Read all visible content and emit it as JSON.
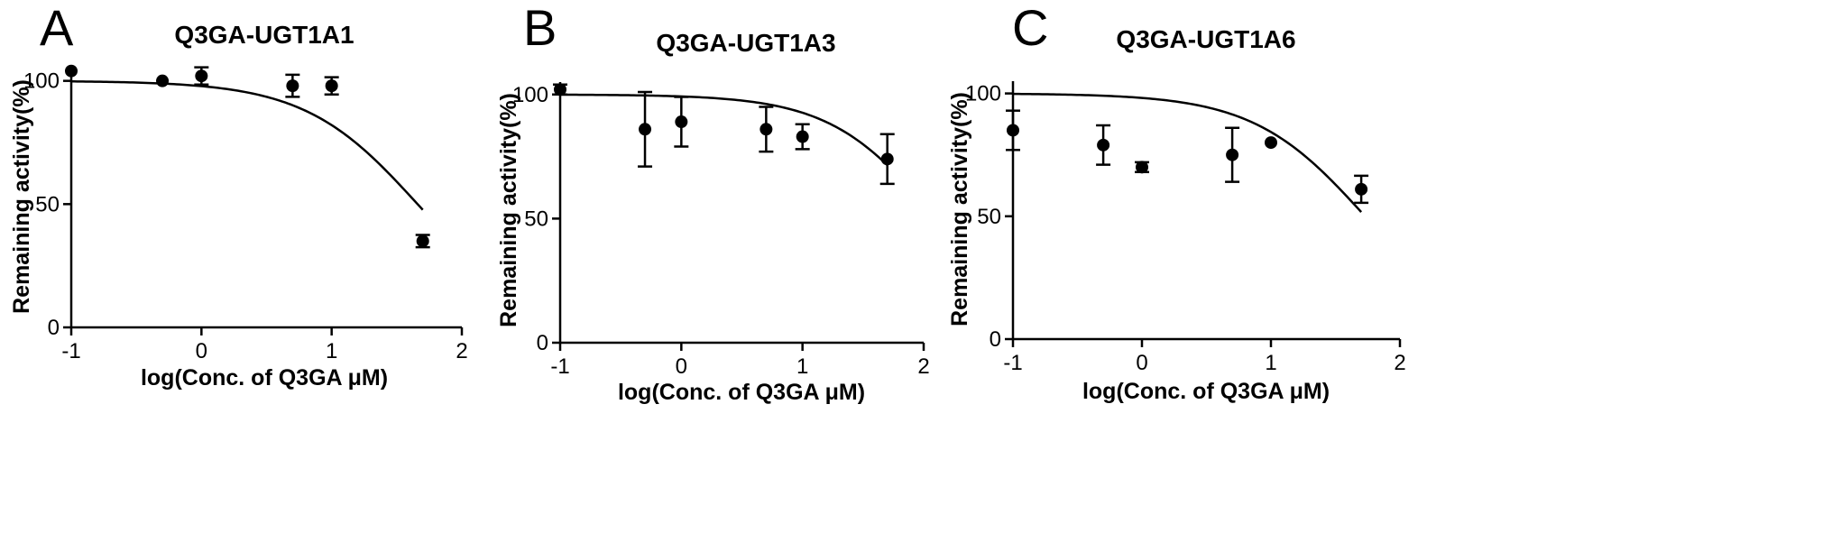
{
  "chart_data": [
    {
      "type": "scatter",
      "panel": "A",
      "title": "Q3GA-UGT1A1",
      "xlabel": "log(Conc. of Q3GA μM)",
      "ylabel": "Remaining activity(%)",
      "xlim": [
        -1,
        2
      ],
      "ylim": [
        0,
        105
      ],
      "xticks": [
        -1,
        0,
        1,
        2
      ],
      "yticks": [
        0,
        50,
        100
      ],
      "grid": false,
      "points": [
        {
          "x": -1.0,
          "y": 104,
          "err": 0
        },
        {
          "x": -0.3,
          "y": 100,
          "err": 0
        },
        {
          "x": 0.0,
          "y": 102,
          "err": 3.5
        },
        {
          "x": 0.7,
          "y": 98,
          "err": 4.5
        },
        {
          "x": 1.0,
          "y": 98,
          "err": 3.5
        },
        {
          "x": 1.7,
          "y": 35,
          "err": 2.5
        }
      ],
      "fit": {
        "top": 100,
        "logIC50": 1.66,
        "hill": 1.0,
        "x_end": 1.7
      }
    },
    {
      "type": "scatter",
      "panel": "B",
      "title": "Q3GA-UGT1A3",
      "xlabel": "log(Conc. of Q3GA μM)",
      "ylabel": "Remaining activity(%)",
      "xlim": [
        -1,
        2
      ],
      "ylim": [
        0,
        105
      ],
      "xticks": [
        -1,
        0,
        1,
        2
      ],
      "yticks": [
        0,
        50,
        100
      ],
      "grid": false,
      "points": [
        {
          "x": -1.0,
          "y": 102,
          "err": 2
        },
        {
          "x": -0.3,
          "y": 86,
          "err": 15
        },
        {
          "x": 0.0,
          "y": 89,
          "err": 10
        },
        {
          "x": 0.7,
          "y": 86,
          "err": 9
        },
        {
          "x": 1.0,
          "y": 83,
          "err": 5
        },
        {
          "x": 1.7,
          "y": 74,
          "err": 10
        }
      ],
      "fit": {
        "top": 100,
        "logIC50": 2.1,
        "hill": 1.0,
        "x_end": 1.7
      }
    },
    {
      "type": "scatter",
      "panel": "C",
      "title": "Q3GA-UGT1A6",
      "xlabel": "log(Conc. of Q3GA μM)",
      "ylabel": "Remaining activity(%)",
      "xlim": [
        -1,
        2
      ],
      "ylim": [
        0,
        105
      ],
      "xticks": [
        -1,
        0,
        1,
        2
      ],
      "yticks": [
        0,
        50,
        100
      ],
      "grid": false,
      "points": [
        {
          "x": -1.0,
          "y": 85,
          "err": 8
        },
        {
          "x": -0.3,
          "y": 79,
          "err": 8
        },
        {
          "x": 0.0,
          "y": 70,
          "err": 2
        },
        {
          "x": 0.7,
          "y": 75,
          "err": 11
        },
        {
          "x": 1.0,
          "y": 80,
          "err": 0
        },
        {
          "x": 1.7,
          "y": 61,
          "err": 5.5
        }
      ],
      "fit": {
        "top": 100,
        "logIC50": 1.73,
        "hill": 1.0,
        "x_end": 1.7
      }
    }
  ]
}
